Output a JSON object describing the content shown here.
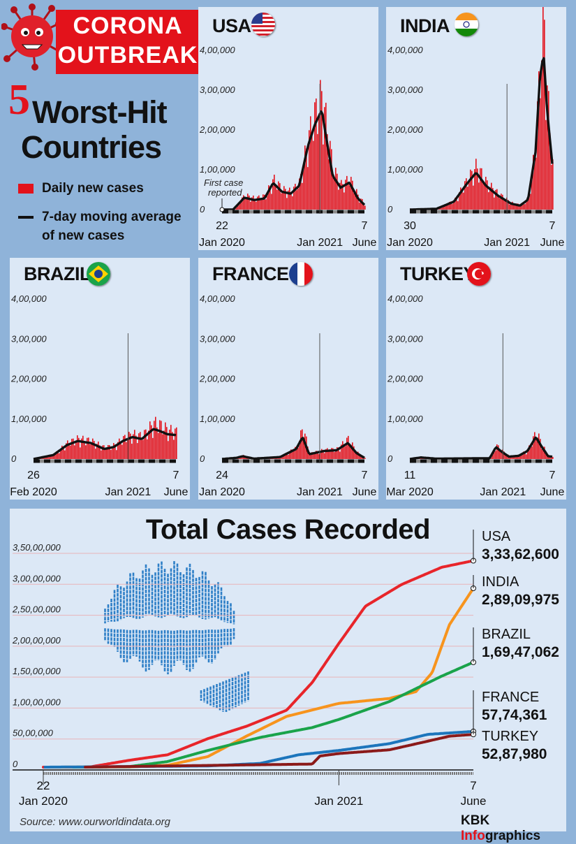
{
  "header": {
    "banner_line1": "CORONA",
    "banner_line2": "OUTBREAK",
    "numeral": "5",
    "title_line1": "Worst-Hit",
    "title_line2": "Countries"
  },
  "legend": {
    "daily": "Daily new cases",
    "avg_line1": "7-day moving average",
    "avg_line2": "of new cases"
  },
  "colors": {
    "bar": "#e3121b",
    "avg": "#111111",
    "panel": "#dce8f6",
    "background": "#8fb3d9",
    "usa": "#e8252a",
    "india": "#f7941d",
    "brazil": "#1aa34a",
    "france": "#1c75bc",
    "turkey": "#8b1a1a"
  },
  "annotation": {
    "first_case_1": "First case",
    "first_case_2": "reported"
  },
  "panels": [
    {
      "country": "USA",
      "flag": "usa-flag-icon",
      "yticks": [
        "4,00,000",
        "3,00,000",
        "2,00,000",
        "1,00,000",
        "0"
      ],
      "start_day": "22",
      "start_month": "Jan 2020",
      "mid": "Jan 2021",
      "end_day": "7",
      "end_month": "June"
    },
    {
      "country": "INDIA",
      "flag": "india-flag-icon",
      "yticks": [
        "4,00,000",
        "3,00,000",
        "2,00,000",
        "1,00,000",
        "0"
      ],
      "start_day": "30",
      "start_month": "Jan 2020",
      "mid": "Jan 2021",
      "end_day": "7",
      "end_month": "June"
    },
    {
      "country": "BRAZIL",
      "flag": "brazil-flag-icon",
      "yticks": [
        "4,00,000",
        "3,00,000",
        "2,00,000",
        "1,00,000",
        "0"
      ],
      "start_day": "26",
      "start_month": "Feb 2020",
      "mid": "Jan 2021",
      "end_day": "7",
      "end_month": "June"
    },
    {
      "country": "FRANCE",
      "flag": "france-flag-icon",
      "yticks": [
        "4,00,000",
        "3,00,000",
        "2,00,000",
        "1,00,000",
        "0"
      ],
      "start_day": "24",
      "start_month": "Jan 2020",
      "mid": "Jan 2021",
      "end_day": "7",
      "end_month": "June"
    },
    {
      "country": "TURKEY",
      "flag": "turkey-flag-icon",
      "yticks": [
        "4,00,000",
        "3,00,000",
        "2,00,000",
        "1,00,000",
        "0"
      ],
      "start_day": "11",
      "start_month": "Mar 2020",
      "mid": "Jan 2021",
      "end_day": "7",
      "end_month": "June"
    }
  ],
  "total": {
    "title": "Total Cases Recorded",
    "yticks": [
      "3,50,00,000",
      "3,00,00,000",
      "2,50,00,000",
      "2,00,00,000",
      "1,50,00,000",
      "1,00,00,000",
      "50,00,000",
      "0"
    ],
    "x_start_day": "22",
    "x_start_month": "Jan 2020",
    "x_mid": "Jan 2021",
    "x_end_day": "7",
    "x_end_month": "June",
    "labels": [
      {
        "country": "USA",
        "value": "3,33,62,600"
      },
      {
        "country": "INDIA",
        "value": "2,89,09,975"
      },
      {
        "country": "BRAZIL",
        "value": "1,69,47,062"
      },
      {
        "country": "FRANCE",
        "value": "57,74,361"
      },
      {
        "country": "TURKEY",
        "value": "52,87,980"
      }
    ]
  },
  "footer": {
    "source": "Source: www.ourworldindata.org",
    "brand_a": "KBK ",
    "brand_b": "Info",
    "brand_c": "graphics"
  },
  "chart_data": [
    {
      "type": "bar",
      "title": "USA",
      "ylim": [
        0,
        400000
      ],
      "series": [
        {
          "name": "Daily new cases",
          "x": [
            "2020-01-22",
            "2020-03-01",
            "2020-04-10",
            "2020-05-15",
            "2020-06-20",
            "2020-07-20",
            "2020-08-20",
            "2020-09-20",
            "2020-10-20",
            "2020-11-20",
            "2020-12-15",
            "2021-01-08",
            "2021-01-20",
            "2021-02-15",
            "2021-03-15",
            "2021-04-15",
            "2021-05-15",
            "2021-06-07"
          ],
          "values": [
            0,
            0,
            32000,
            25000,
            30000,
            67000,
            45000,
            40000,
            60000,
            160000,
            215000,
            255000,
            200000,
            90000,
            55000,
            68000,
            30000,
            12000
          ]
        },
        {
          "name": "7-day moving average",
          "x": [
            "2020-01-22",
            "2020-03-01",
            "2020-04-10",
            "2020-05-15",
            "2020-06-20",
            "2020-07-20",
            "2020-08-20",
            "2020-09-20",
            "2020-10-20",
            "2020-11-20",
            "2020-12-15",
            "2021-01-08",
            "2021-01-20",
            "2021-02-15",
            "2021-03-15",
            "2021-04-15",
            "2021-05-15",
            "2021-06-07"
          ],
          "values": [
            0,
            0,
            30000,
            24000,
            28000,
            67000,
            45000,
            40000,
            60000,
            160000,
            215000,
            250000,
            195000,
            85000,
            55000,
            68000,
            28000,
            12000
          ]
        }
      ]
    },
    {
      "type": "bar",
      "title": "INDIA",
      "ylim": [
        0,
        400000
      ],
      "series": [
        {
          "name": "Daily new cases",
          "x": [
            "2020-01-30",
            "2020-05-01",
            "2020-07-01",
            "2020-08-15",
            "2020-09-16",
            "2020-10-20",
            "2020-12-01",
            "2021-01-15",
            "2021-02-15",
            "2021-03-15",
            "2021-04-10",
            "2021-04-25",
            "2021-05-08",
            "2021-05-20",
            "2021-06-07"
          ],
          "values": [
            0,
            2000,
            20000,
            65000,
            97000,
            60000,
            35000,
            15000,
            10000,
            25000,
            150000,
            340000,
            414000,
            250000,
            100000
          ]
        },
        {
          "name": "7-day moving average",
          "x": [
            "2020-01-30",
            "2020-05-01",
            "2020-07-01",
            "2020-08-15",
            "2020-09-16",
            "2020-10-20",
            "2020-12-01",
            "2021-01-15",
            "2021-02-15",
            "2021-03-15",
            "2021-04-10",
            "2021-04-25",
            "2021-05-08",
            "2021-05-20",
            "2021-06-07"
          ],
          "values": [
            0,
            2000,
            20000,
            65000,
            93000,
            60000,
            35000,
            15000,
            10000,
            25000,
            145000,
            330000,
            391000,
            250000,
            115000
          ]
        }
      ]
    },
    {
      "type": "bar",
      "title": "BRAZIL",
      "ylim": [
        0,
        400000
      ],
      "series": [
        {
          "name": "Daily new cases",
          "x": [
            "2020-02-26",
            "2020-05-01",
            "2020-06-15",
            "2020-07-20",
            "2020-09-01",
            "2020-10-15",
            "2020-11-15",
            "2020-12-15",
            "2021-01-15",
            "2021-02-15",
            "2021-03-25",
            "2021-04-15",
            "2021-05-10",
            "2021-06-07"
          ],
          "values": [
            0,
            10000,
            35000,
            45000,
            40000,
            25000,
            30000,
            45000,
            55000,
            50000,
            80000,
            75000,
            65000,
            60000
          ]
        },
        {
          "name": "7-day moving average",
          "x": [
            "2020-02-26",
            "2020-05-01",
            "2020-06-15",
            "2020-07-20",
            "2020-09-01",
            "2020-10-15",
            "2020-11-15",
            "2020-12-15",
            "2021-01-15",
            "2021-02-15",
            "2021-03-25",
            "2021-04-15",
            "2021-05-10",
            "2021-06-07"
          ],
          "values": [
            0,
            10000,
            35000,
            45000,
            40000,
            25000,
            30000,
            45000,
            55000,
            50000,
            75000,
            70000,
            62000,
            60000
          ]
        }
      ]
    },
    {
      "type": "bar",
      "title": "FRANCE",
      "ylim": [
        0,
        400000
      ],
      "series": [
        {
          "name": "Daily new cases",
          "x": [
            "2020-01-24",
            "2020-03-15",
            "2020-04-05",
            "2020-05-15",
            "2020-08-15",
            "2020-10-10",
            "2020-11-02",
            "2020-11-25",
            "2021-01-15",
            "2021-03-01",
            "2021-04-10",
            "2021-05-10",
            "2021-06-07"
          ],
          "values": [
            0,
            3000,
            8000,
            1000,
            5000,
            25000,
            70000,
            12000,
            20000,
            22000,
            45000,
            15000,
            3000
          ]
        },
        {
          "name": "7-day moving average",
          "x": [
            "2020-01-24",
            "2020-03-15",
            "2020-04-05",
            "2020-05-15",
            "2020-08-15",
            "2020-10-10",
            "2020-11-02",
            "2020-11-25",
            "2021-01-15",
            "2021-03-01",
            "2021-04-10",
            "2021-05-10",
            "2021-06-07"
          ],
          "values": [
            0,
            3000,
            7000,
            1000,
            5000,
            25000,
            55000,
            12000,
            20000,
            22000,
            40000,
            15000,
            3000
          ]
        }
      ]
    },
    {
      "type": "bar",
      "title": "TURKEY",
      "ylim": [
        0,
        400000
      ],
      "series": [
        {
          "name": "Daily new cases",
          "x": [
            "2020-03-11",
            "2020-04-15",
            "2020-06-01",
            "2020-09-01",
            "2020-11-20",
            "2020-12-10",
            "2020-12-25",
            "2021-01-20",
            "2021-02-20",
            "2021-03-20",
            "2021-04-16",
            "2021-05-05",
            "2021-05-25",
            "2021-06-07"
          ],
          "values": [
            0,
            4500,
            1000,
            1500,
            2000,
            30000,
            20000,
            6000,
            8000,
            20000,
            60000,
            30000,
            7000,
            6000
          ]
        },
        {
          "name": "7-day moving average",
          "x": [
            "2020-03-11",
            "2020-04-15",
            "2020-06-01",
            "2020-09-01",
            "2020-11-20",
            "2020-12-10",
            "2020-12-25",
            "2021-01-20",
            "2021-02-20",
            "2021-03-20",
            "2021-04-16",
            "2021-05-05",
            "2021-05-25",
            "2021-06-07"
          ],
          "values": [
            0,
            4000,
            1000,
            1500,
            2000,
            30000,
            20000,
            6000,
            8000,
            20000,
            55000,
            30000,
            7000,
            6000
          ]
        }
      ]
    },
    {
      "type": "line",
      "title": "Total Cases Recorded",
      "ylim": [
        0,
        35000000
      ],
      "series": [
        {
          "name": "USA",
          "x": [
            "2020-01-22",
            "2020-03-15",
            "2020-05-01",
            "2020-06-15",
            "2020-08-01",
            "2020-09-15",
            "2020-11-01",
            "2020-12-01",
            "2021-01-01",
            "2021-02-01",
            "2021-03-15",
            "2021-05-01",
            "2021-06-07"
          ],
          "values": [
            0,
            0,
            1100000,
            2000000,
            4600000,
            6600000,
            9200000,
            13700000,
            20000000,
            26000000,
            29500000,
            32300000,
            33362600
          ]
        },
        {
          "name": "INDIA",
          "x": [
            "2020-01-30",
            "2020-05-01",
            "2020-06-15",
            "2020-08-01",
            "2020-09-15",
            "2020-11-01",
            "2021-01-01",
            "2021-03-01",
            "2021-04-01",
            "2021-04-20",
            "2021-05-10",
            "2021-06-07"
          ],
          "values": [
            0,
            30000,
            300000,
            1700000,
            5000000,
            8200000,
            10300000,
            11100000,
            12200000,
            15300000,
            23000000,
            28909975
          ]
        },
        {
          "name": "BRAZIL",
          "x": [
            "2020-02-26",
            "2020-05-01",
            "2020-06-15",
            "2020-08-01",
            "2020-10-01",
            "2020-12-01",
            "2021-01-01",
            "2021-03-01",
            "2021-05-01",
            "2021-06-07"
          ],
          "values": [
            0,
            80000,
            900000,
            2700000,
            4800000,
            6400000,
            7700000,
            10600000,
            14700000,
            16947062
          ]
        },
        {
          "name": "FRANCE",
          "x": [
            "2020-01-24",
            "2020-04-01",
            "2020-08-01",
            "2020-10-01",
            "2020-11-15",
            "2021-01-01",
            "2021-03-01",
            "2021-04-15",
            "2021-06-07"
          ],
          "values": [
            0,
            60000,
            200000,
            600000,
            2000000,
            2700000,
            3800000,
            5300000,
            5774361
          ]
        },
        {
          "name": "TURKEY",
          "x": [
            "2020-03-11",
            "2020-06-01",
            "2020-12-01",
            "2020-12-10",
            "2021-01-01",
            "2021-03-01",
            "2021-04-15",
            "2021-05-10",
            "2021-06-07"
          ],
          "values": [
            0,
            165000,
            500000,
            1800000,
            2200000,
            2800000,
            4200000,
            5000000,
            5287980
          ]
        }
      ]
    }
  ]
}
